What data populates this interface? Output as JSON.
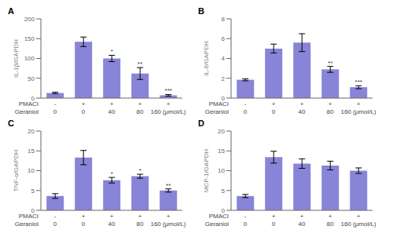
{
  "chart_data": [
    {
      "type": "bar",
      "title": "A",
      "ylabel": "IL-1β/GAPDH",
      "color": "#8884d8",
      "x_rows": [
        {
          "label": "PMACI",
          "categories": [
            "-",
            "+",
            "+",
            "+",
            "+"
          ]
        },
        {
          "label": "Geraniol",
          "categories": [
            "0",
            "0",
            "40",
            "80",
            "160 (μmol/L)"
          ]
        }
      ],
      "values": [
        13,
        142,
        100,
        62,
        7
      ],
      "errors": [
        2,
        12,
        8,
        15,
        2
      ],
      "annotations": [
        null,
        null,
        "*",
        "**",
        "***"
      ],
      "ylim": [
        0,
        200
      ],
      "yticks": [
        0,
        50,
        100,
        150,
        200
      ],
      "grid": false
    },
    {
      "type": "bar",
      "title": "B",
      "ylabel": "IL-6/GAPDH",
      "color": "#8884d8",
      "x_rows": [
        {
          "label": "PMACI",
          "categories": [
            "-",
            "+",
            "+",
            "+",
            "+"
          ]
        },
        {
          "label": "Geraniol",
          "categories": [
            "0",
            "0",
            "40",
            "80",
            "160 (μmol/L)"
          ]
        }
      ],
      "values": [
        1.85,
        5.0,
        5.6,
        2.9,
        1.1
      ],
      "errors": [
        0.1,
        0.45,
        0.9,
        0.3,
        0.15
      ],
      "annotations": [
        null,
        null,
        null,
        "**",
        "***"
      ],
      "ylim": [
        0,
        8
      ],
      "yticks": [
        0,
        2,
        4,
        6,
        8
      ],
      "grid": false
    },
    {
      "type": "bar",
      "title": "C",
      "ylabel": "TNF-α/GAPDH",
      "color": "#8884d8",
      "x_rows": [
        {
          "label": "PMACI",
          "categories": [
            "-",
            "+",
            "+",
            "+",
            "+"
          ]
        },
        {
          "label": "Geraniol",
          "categories": [
            "0",
            "0",
            "40",
            "80",
            "160 (μmol/L)"
          ]
        }
      ],
      "values": [
        3.6,
        13.3,
        7.6,
        8.6,
        5.0
      ],
      "errors": [
        0.6,
        1.8,
        0.7,
        0.5,
        0.4
      ],
      "annotations": [
        null,
        null,
        "*",
        "*",
        "**"
      ],
      "ylim": [
        0,
        20
      ],
      "yticks": [
        0,
        5,
        10,
        15,
        20
      ],
      "grid": false
    },
    {
      "type": "bar",
      "title": "D",
      "ylabel": "MCP-1/GAPDH",
      "color": "#8884d8",
      "x_rows": [
        {
          "label": "PMACI",
          "categories": [
            "-",
            "+",
            "+",
            "+",
            "+"
          ]
        },
        {
          "label": "Geraniol",
          "categories": [
            "0",
            "0",
            "40",
            "80",
            "160 (μmol/L)"
          ]
        }
      ],
      "values": [
        3.6,
        13.4,
        11.8,
        11.3,
        10.0
      ],
      "errors": [
        0.4,
        1.5,
        1.2,
        1.1,
        0.7
      ],
      "annotations": [
        null,
        null,
        null,
        null,
        null
      ],
      "ylim": [
        0,
        20
      ],
      "yticks": [
        0,
        5,
        10,
        15,
        20
      ],
      "grid": false
    }
  ]
}
